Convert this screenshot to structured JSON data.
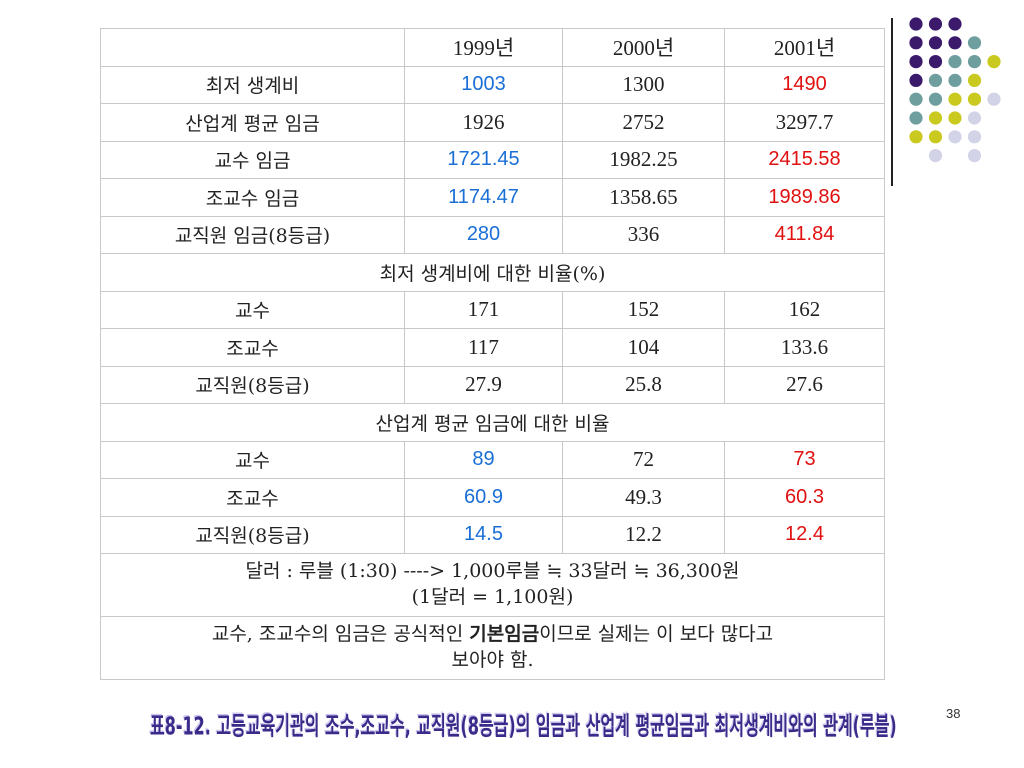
{
  "header": [
    "",
    "1999년",
    "2000년",
    "2001년"
  ],
  "rows": [
    {
      "kind": "data",
      "label": "최저 생계비",
      "cells": [
        "1003",
        "1300",
        "1490"
      ],
      "colors": [
        "blue",
        "",
        "red"
      ]
    },
    {
      "kind": "data",
      "label": "산업계 평균 임금",
      "cells": [
        "1926",
        "2752",
        "3297.7"
      ],
      "colors": [
        "",
        "",
        ""
      ]
    },
    {
      "kind": "data",
      "label": "교수 임금",
      "cells": [
        "1721.45",
        "1982.25",
        "2415.58"
      ],
      "colors": [
        "blue",
        "",
        "red"
      ]
    },
    {
      "kind": "data",
      "label": "조교수 임금",
      "cells": [
        "1174.47",
        "1358.65",
        "1989.86"
      ],
      "colors": [
        "blue",
        "",
        "red"
      ]
    },
    {
      "kind": "data",
      "label": "교직원 임금(8등급)",
      "cells": [
        "280",
        "336",
        "411.84"
      ],
      "colors": [
        "blue",
        "",
        "red"
      ]
    },
    {
      "kind": "section",
      "label": "최저 생계비에 대한 비율(%)"
    },
    {
      "kind": "data",
      "label": "교수",
      "cells": [
        "171",
        "152",
        "162"
      ],
      "colors": [
        "",
        "",
        ""
      ]
    },
    {
      "kind": "data",
      "label": "조교수",
      "cells": [
        "117",
        "104",
        "133.6"
      ],
      "colors": [
        "",
        "",
        ""
      ]
    },
    {
      "kind": "data",
      "label": "교직원(8등급)",
      "cells": [
        "27.9",
        "25.8",
        "27.6"
      ],
      "colors": [
        "",
        "",
        ""
      ]
    },
    {
      "kind": "section",
      "label": "산업계 평균 임금에 대한 비율"
    },
    {
      "kind": "data",
      "label": "교수",
      "cells": [
        "89",
        "72",
        "73"
      ],
      "colors": [
        "blue",
        "",
        "red"
      ]
    },
    {
      "kind": "data",
      "label": "조교수",
      "cells": [
        "60.9",
        "49.3",
        "60.3"
      ],
      "colors": [
        "blue",
        "",
        "red"
      ]
    },
    {
      "kind": "data",
      "label": "교직원(8등급)",
      "cells": [
        "14.5",
        "12.2",
        "12.4"
      ],
      "colors": [
        "blue",
        "",
        "red"
      ]
    }
  ],
  "exchange_note": {
    "line1": "달러 : 루블 (1:30)   ----> 1,000루블 ≒ 33달러 ≒ 36,300원",
    "line2": "(1달러 = 1,100원)"
  },
  "wage_note": {
    "before": "교수, 조교수의 임금은 공식적인 ",
    "bold": "기본임금",
    "after": "이므로 실제는 이 보다 많다고",
    "line2": "보아야 함."
  },
  "caption": "표8-12. 고등교육기관의 조수,조교수, 교직원(8등급)의 임금과 산업계 평균임금과 최저생계비와의 관계(루블)",
  "page_number": "38",
  "colors": {
    "blue": "#1a6fd6",
    "red": "#e01010",
    "dot_purple": "#3b1a6b",
    "dot_teal": "#6f9e9e",
    "dot_yellow": "#c9c91f",
    "dot_lavender": "#d3d3e8",
    "caption": "#3a2a8a"
  }
}
